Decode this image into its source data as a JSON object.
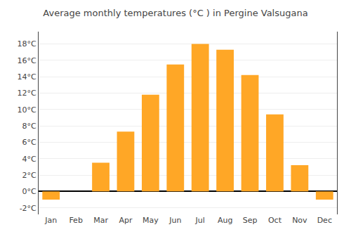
{
  "chart_data": {
    "type": "bar",
    "title": "Average monthly temperatures (°C ) in Pergine Valsugana",
    "categories": [
      "Jan",
      "Feb",
      "Mar",
      "Apr",
      "May",
      "Jun",
      "Jul",
      "Aug",
      "Sep",
      "Oct",
      "Nov",
      "Dec"
    ],
    "values": [
      -1.0,
      0.0,
      3.5,
      7.3,
      11.8,
      15.5,
      18.0,
      17.3,
      14.2,
      9.4,
      3.2,
      -1.0
    ],
    "color": "#FFA726",
    "ylim": [
      -2.8,
      19.5
    ],
    "yticks": [
      {
        "value": -2,
        "label": "-2°C"
      },
      {
        "value": 0,
        "label": "0°C"
      },
      {
        "value": 2,
        "label": "2°C"
      },
      {
        "value": 4,
        "label": "4°C"
      },
      {
        "value": 6,
        "label": "6°C"
      },
      {
        "value": 8,
        "label": "8°C"
      },
      {
        "value": 10,
        "label": "10°C"
      },
      {
        "value": 12,
        "label": "12°C"
      },
      {
        "value": 14,
        "label": "14°C"
      },
      {
        "value": 16,
        "label": "16°C"
      },
      {
        "value": 18,
        "label": "18°C"
      }
    ],
    "grid": true
  }
}
